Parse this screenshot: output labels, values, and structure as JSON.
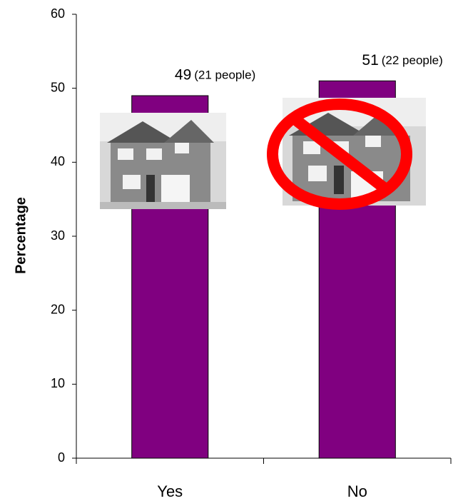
{
  "chart_data": {
    "type": "bar",
    "y_label": "Percentage",
    "categories": [
      "Yes",
      "No"
    ],
    "values": [
      49,
      51
    ],
    "value_notes": [
      "(21 people)",
      "(22 people)"
    ],
    "color": "#800080",
    "ylim": [
      0,
      60
    ],
    "yticks": [
      0,
      10,
      20,
      30,
      40,
      50,
      60
    ],
    "grid": false
  }
}
